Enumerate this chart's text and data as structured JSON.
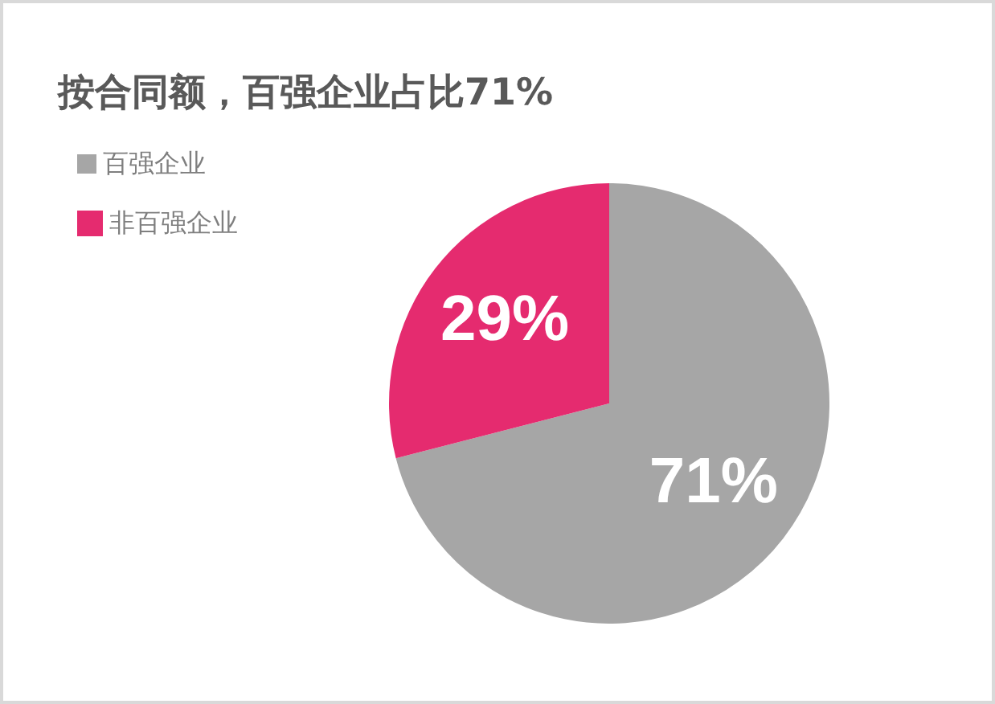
{
  "chart_data": {
    "type": "pie",
    "title": "按合同额，百强企业占比71%",
    "categories": [
      "百强企业",
      "非百强企业"
    ],
    "values": [
      71,
      29
    ],
    "value_labels": [
      "71%",
      "29%"
    ],
    "colors": [
      "#a6a6a6",
      "#e52b6f"
    ],
    "legend": "top left"
  }
}
